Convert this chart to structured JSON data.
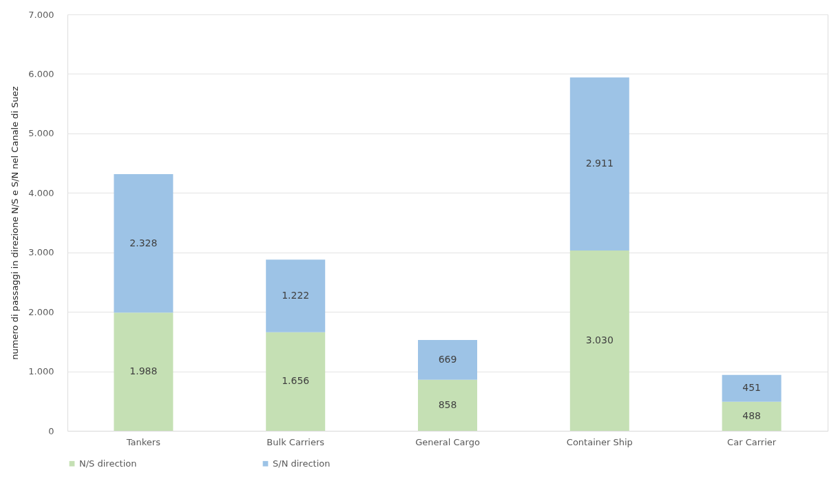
{
  "chart_data": {
    "type": "bar",
    "stacked": true,
    "ylabel": "numero di passaggi in direzione N/S e S/N nel Canale di Suez",
    "categories": [
      "Tankers",
      "Bulk Carriers",
      "General Cargo",
      "Container Ship",
      "Car Carrier"
    ],
    "series": [
      {
        "name": "N/S direction",
        "color": "#c5e0b4",
        "values": [
          1988,
          1656,
          858,
          3030,
          488
        ],
        "value_labels": [
          "1.988",
          "1.656",
          "858",
          "3.030",
          "488"
        ]
      },
      {
        "name": "S/N direction",
        "color": "#9dc3e6",
        "values": [
          2328,
          1222,
          669,
          2911,
          451
        ],
        "value_labels": [
          "2.328",
          "1.222",
          "669",
          "2.911",
          "451"
        ]
      }
    ],
    "ylim": [
      0,
      7000
    ],
    "yticks": [
      0,
      {
        "value": 1000,
        "label": "1.000"
      },
      {
        "value": 2000,
        "label": "2.000"
      },
      {
        "value": 3000,
        "label": "3.000"
      },
      {
        "value": 4000,
        "label": "4.000"
      },
      {
        "value": 5000,
        "label": "5.000"
      },
      {
        "value": 6000,
        "label": "6.000"
      },
      {
        "value": 7000,
        "label": "7.000"
      }
    ],
    "grid": "y",
    "legend": "bottom"
  }
}
